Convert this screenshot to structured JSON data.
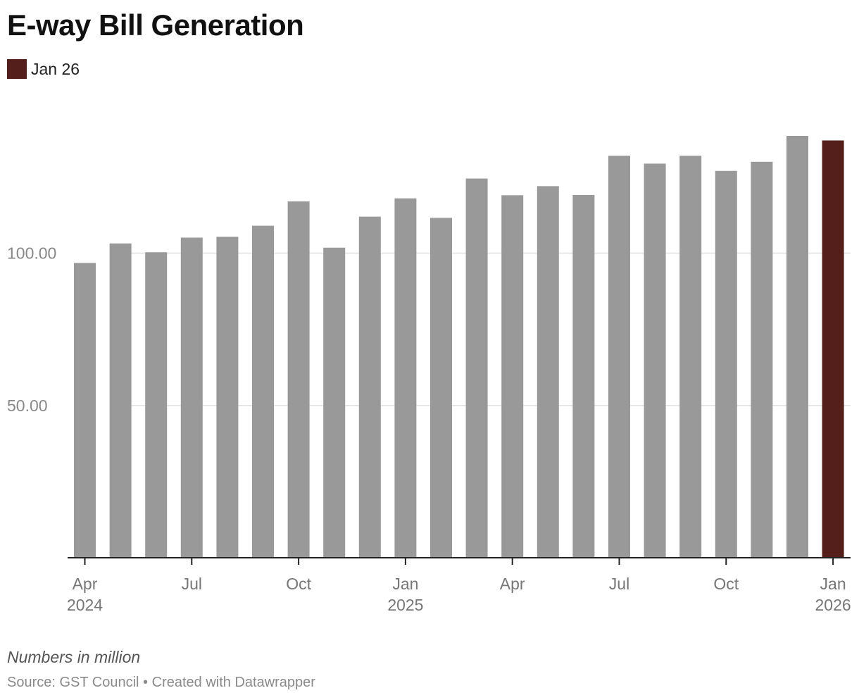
{
  "header": {
    "title": "E-way Bill Generation",
    "legend_label": "Jan 26"
  },
  "footer": {
    "notes": "Numbers in million",
    "source_prefix": "Source: ",
    "source_name": "GST Council",
    "separator": " • ",
    "credit": "Created with Datawrapper"
  },
  "colors": {
    "bar": "#999999",
    "highlight": "#541e1a",
    "grid": "#e2e2e2",
    "axis": "#222222",
    "tick_text": "#777777",
    "label_text": "#888888"
  },
  "chart_data": {
    "type": "bar",
    "title": "E-way Bill Generation",
    "xlabel": "",
    "ylabel": "",
    "ylim": [
      0,
      140
    ],
    "yticks": [
      50,
      100
    ],
    "ytick_labels": [
      "50.00",
      "100.00"
    ],
    "categories": [
      "Apr 2024",
      "May 2024",
      "Jun 2024",
      "Jul 2024",
      "Aug 2024",
      "Sep 2024",
      "Oct 2024",
      "Nov 2024",
      "Dec 2024",
      "Jan 2025",
      "Feb 2025",
      "Mar 2025",
      "Apr 2025",
      "May 2025",
      "Jun 2025",
      "Jul 2025",
      "Aug 2025",
      "Sep 2025",
      "Oct 2025",
      "Nov 2025",
      "Dec 2025",
      "Jan 2026"
    ],
    "values": [
      96.8,
      103.2,
      100.3,
      105.1,
      105.4,
      109.0,
      117.0,
      101.8,
      112.0,
      118.0,
      111.6,
      124.5,
      119.0,
      122.0,
      119.1,
      132.0,
      129.4,
      132.0,
      127.0,
      130.0,
      138.5,
      137.0
    ],
    "highlight_index": 21,
    "xtick_marks": [
      {
        "index": 0,
        "line1": "Apr",
        "line2": "2024"
      },
      {
        "index": 3,
        "line1": "Jul",
        "line2": ""
      },
      {
        "index": 6,
        "line1": "Oct",
        "line2": ""
      },
      {
        "index": 9,
        "line1": "Jan",
        "line2": "2025"
      },
      {
        "index": 12,
        "line1": "Apr",
        "line2": ""
      },
      {
        "index": 15,
        "line1": "Jul",
        "line2": ""
      },
      {
        "index": 18,
        "line1": "Oct",
        "line2": ""
      },
      {
        "index": 21,
        "line1": "Jan",
        "line2": "2026"
      }
    ],
    "legend": [
      {
        "name": "Jan 26",
        "color": "#541e1a"
      }
    ],
    "grid": true
  }
}
